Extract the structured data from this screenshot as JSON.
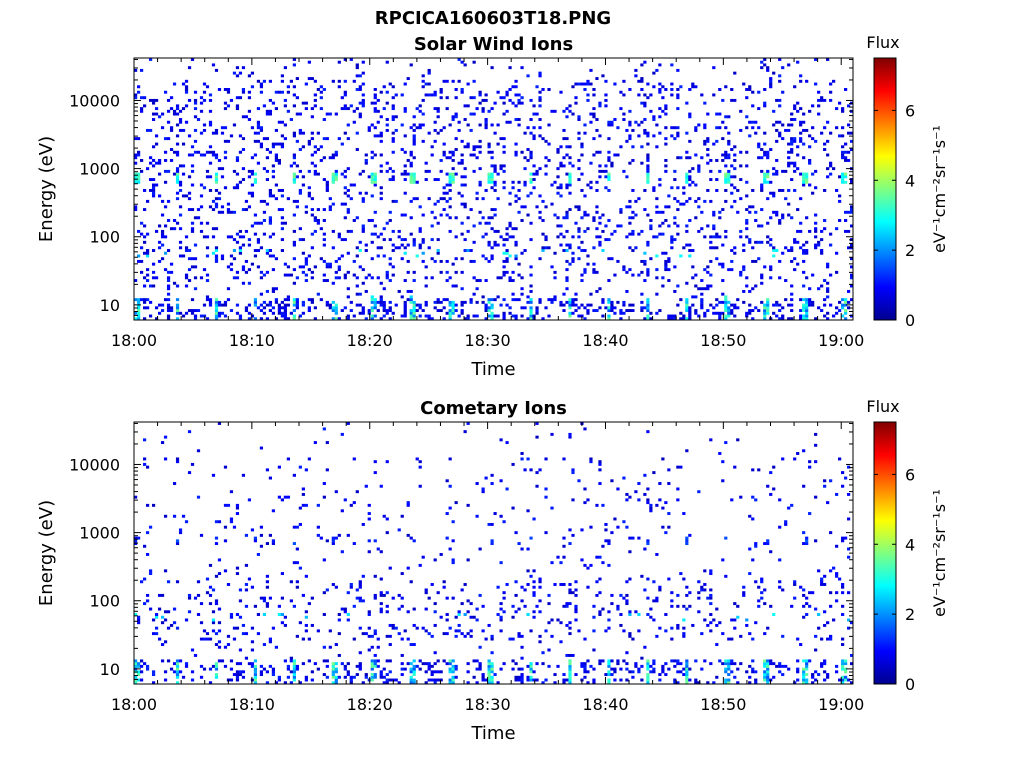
{
  "figure_title": "RPCICA160603T18.PNG",
  "colors": {
    "colormap": [
      "#00008f",
      "#0000ff",
      "#0080ff",
      "#00ffff",
      "#80ff80",
      "#ffff00",
      "#ff8000",
      "#ff0000",
      "#800000"
    ]
  },
  "chart_data": [
    {
      "type": "heatmap",
      "title": "Solar Wind Ions",
      "xlabel": "Time",
      "ylabel": "Energy (eV)",
      "x_tick_labels": [
        "18:00",
        "18:10",
        "18:20",
        "18:30",
        "18:40",
        "18:50",
        "19:00"
      ],
      "y_tick_labels": [
        "10",
        "100",
        "1000",
        "10000"
      ],
      "y_ticks": [
        10,
        100,
        1000,
        10000
      ],
      "y_scale": "log",
      "ylim": [
        6,
        42000
      ],
      "xlim_minutes": [
        0,
        61
      ],
      "colorbar": {
        "title": "Flux",
        "label": "eV⁻¹cm⁻²sr⁻¹s⁻¹",
        "tick_labels": [
          "0",
          "2",
          "4",
          "6"
        ],
        "range": [
          0,
          7.5
        ]
      },
      "features": {
        "peak_energy_eV": 750,
        "secondary_energy_eV": 1600,
        "peak_flux": 3.5
      }
    },
    {
      "type": "heatmap",
      "title": "Cometary Ions",
      "xlabel": "Time",
      "ylabel": "Energy (eV)",
      "x_tick_labels": [
        "18:00",
        "18:10",
        "18:20",
        "18:30",
        "18:40",
        "18:50",
        "19:00"
      ],
      "y_tick_labels": [
        "10",
        "100",
        "1000",
        "10000"
      ],
      "y_ticks": [
        10,
        100,
        1000,
        10000
      ],
      "y_scale": "log",
      "ylim": [
        6,
        42000
      ],
      "xlim_minutes": [
        0,
        61
      ],
      "colorbar": {
        "title": "Flux",
        "label": "eV⁻¹cm⁻²sr⁻¹s⁻¹",
        "tick_labels": [
          "0",
          "2",
          "4",
          "6"
        ],
        "range": [
          0,
          7.5
        ]
      },
      "features": {
        "peak_energy_eV": 750,
        "low_energy_band_eV": 12,
        "peak_flux": 3.2
      }
    }
  ]
}
